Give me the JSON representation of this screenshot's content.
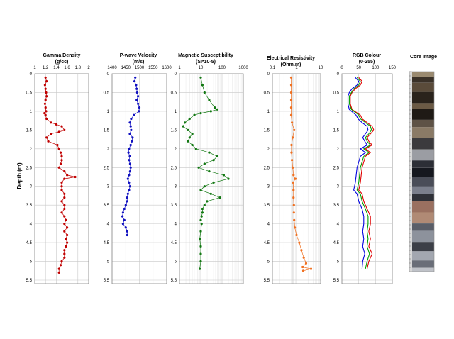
{
  "y_axis_label": "Depth (m)",
  "depth_ticks": [
    "0",
    "0.5",
    "1",
    "1.5",
    "2",
    "2.5",
    "3",
    "3.5",
    "4",
    "4.5",
    "5",
    "5.5"
  ],
  "core_title": "Core Image",
  "colors": {
    "gamma": "#c00000",
    "pwave": "#1010c0",
    "mag": "#117711",
    "res": "#f07020",
    "red": "#e00000",
    "green": "#00a000",
    "blue": "#0000e0",
    "grid": "#c8c8c8",
    "axis": "#888888"
  },
  "chart_data": [
    {
      "type": "line",
      "id": "gamma",
      "title": "Gamma Density",
      "subtitle": "(g/cc)",
      "xlim": [
        1,
        2
      ],
      "x_ticks": [
        "1",
        "1.2",
        "1.4",
        "1.6",
        "1.8",
        "2"
      ],
      "ylim": [
        0,
        6
      ],
      "series": [
        {
          "y": [
            0.1,
            0.2,
            0.3,
            0.4,
            0.5,
            0.6,
            0.7,
            0.8,
            0.9,
            1.0,
            1.05,
            1.1,
            1.2,
            1.3,
            1.35,
            1.4,
            1.5,
            1.55,
            1.6,
            1.7,
            1.8,
            1.9,
            2.0,
            2.1,
            2.2,
            2.3,
            2.4,
            2.5,
            2.6,
            2.7,
            2.75,
            2.8,
            2.9,
            3.0,
            3.1,
            3.2,
            3.3,
            3.4,
            3.5,
            3.6,
            3.7,
            3.8,
            3.9,
            4.0,
            4.1,
            4.2,
            4.3,
            4.4,
            4.5,
            4.6,
            4.7,
            4.8,
            4.9,
            5.0,
            5.1,
            5.2,
            5.3
          ],
          "x": [
            1.2,
            1.22,
            1.19,
            1.2,
            1.21,
            1.22,
            1.2,
            1.19,
            1.2,
            1.21,
            1.18,
            1.2,
            1.22,
            1.3,
            1.4,
            1.5,
            1.55,
            1.45,
            1.3,
            1.22,
            1.25,
            1.42,
            1.45,
            1.48,
            1.5,
            1.5,
            1.48,
            1.45,
            1.55,
            1.6,
            1.75,
            1.55,
            1.5,
            1.5,
            1.5,
            1.55,
            1.55,
            1.5,
            1.55,
            1.55,
            1.5,
            1.55,
            1.58,
            1.55,
            1.6,
            1.55,
            1.6,
            1.58,
            1.6,
            1.58,
            1.55,
            1.55,
            1.55,
            1.5,
            1.48,
            1.45,
            1.45
          ]
        }
      ]
    },
    {
      "type": "line",
      "id": "pwave",
      "title": "P-wave Velocity",
      "subtitle": "(m/s)",
      "xlim": [
        1400,
        1600
      ],
      "x_ticks": [
        "1400",
        "1450",
        "1500",
        "1550",
        "1600"
      ],
      "ylim": [
        0,
        6
      ],
      "series": [
        {
          "y": [
            0.1,
            0.2,
            0.3,
            0.4,
            0.5,
            0.6,
            0.7,
            0.8,
            0.9,
            1.0,
            1.1,
            1.2,
            1.3,
            1.4,
            1.5,
            1.6,
            1.7,
            1.8,
            1.9,
            2.0,
            2.1,
            2.2,
            2.3,
            2.4,
            2.5,
            2.6,
            2.7,
            2.8,
            2.9,
            3.0,
            3.1,
            3.2,
            3.3,
            3.4,
            3.5,
            3.6,
            3.7,
            3.8,
            3.9,
            4.0,
            4.1,
            4.2,
            4.3
          ],
          "x": [
            1485,
            1482,
            1488,
            1490,
            1492,
            1495,
            1490,
            1495,
            1500,
            1498,
            1480,
            1470,
            1465,
            1468,
            1470,
            1465,
            1475,
            1472,
            1468,
            1462,
            1460,
            1465,
            1462,
            1466,
            1468,
            1466,
            1462,
            1458,
            1462,
            1466,
            1462,
            1458,
            1455,
            1455,
            1450,
            1445,
            1440,
            1438,
            1445,
            1440,
            1450,
            1455,
            1455
          ]
        }
      ]
    },
    {
      "type": "line",
      "id": "mag",
      "title": "Magnetic Susceptibility",
      "subtitle": "(SI*10-5)",
      "log_x": true,
      "xlim": [
        1,
        1000
      ],
      "x_ticks": [
        "1",
        "10",
        "100",
        "1000"
      ],
      "ylim": [
        0,
        6
      ],
      "series": [
        {
          "y": [
            0.1,
            0.3,
            0.5,
            0.7,
            0.9,
            0.95,
            1.0,
            1.05,
            1.1,
            1.2,
            1.3,
            1.4,
            1.5,
            1.6,
            1.7,
            1.8,
            1.9,
            2.0,
            2.1,
            2.2,
            2.3,
            2.4,
            2.5,
            2.6,
            2.7,
            2.8,
            2.9,
            3.0,
            3.1,
            3.2,
            3.3,
            3.4,
            3.5,
            3.6,
            3.7,
            3.8,
            3.9,
            4.0,
            4.2,
            4.4,
            4.6,
            4.8,
            5.0,
            5.2
          ],
          "x": [
            10,
            12,
            15,
            25,
            45,
            60,
            30,
            10,
            5,
            3,
            1.8,
            1.5,
            2.5,
            4,
            3,
            2.5,
            4,
            6,
            25,
            60,
            40,
            15,
            8,
            25,
            120,
            200,
            40,
            15,
            10,
            30,
            80,
            20,
            15,
            12,
            12,
            11,
            10,
            11,
            10,
            9,
            10,
            10,
            10,
            9
          ]
        }
      ]
    },
    {
      "type": "line",
      "id": "res",
      "title": "Electrical Resistivity",
      "subtitle": "(Ohm.m)",
      "log_x": true,
      "xlim": [
        0.1,
        10
      ],
      "x_ticks": [
        "0.1",
        "1",
        "10"
      ],
      "ylim": [
        0,
        6
      ],
      "series": [
        {
          "y": [
            0.1,
            0.3,
            0.5,
            0.7,
            0.9,
            1.1,
            1.3,
            1.5,
            1.7,
            1.9,
            2.1,
            2.3,
            2.5,
            2.7,
            2.8,
            2.9,
            3.1,
            3.3,
            3.5,
            3.7,
            3.9,
            4.1,
            4.3,
            4.5,
            4.7,
            4.9,
            5.05,
            5.15,
            5.2,
            5.25
          ],
          "x": [
            0.6,
            0.6,
            0.6,
            0.6,
            0.6,
            0.6,
            0.65,
            0.8,
            0.7,
            0.62,
            0.62,
            0.65,
            0.7,
            0.75,
            0.9,
            0.72,
            0.75,
            0.75,
            0.78,
            0.78,
            0.8,
            0.85,
            1.0,
            1.3,
            1.6,
            2.0,
            2.5,
            1.8,
            4.0,
            1.9
          ]
        }
      ]
    },
    {
      "type": "line",
      "id": "rgb",
      "title": "RGB Colour",
      "subtitle": "(0-255)",
      "xlim": [
        0,
        150
      ],
      "x_ticks": [
        "0",
        "50",
        "100",
        "150"
      ],
      "ylim": [
        0,
        6
      ],
      "series": [
        {
          "name": "red",
          "y": [
            0.1,
            0.2,
            0.3,
            0.4,
            0.5,
            0.6,
            0.8,
            0.95,
            1.1,
            1.2,
            1.3,
            1.4,
            1.5,
            1.6,
            1.7,
            1.8,
            1.9,
            2.0,
            2.1,
            2.2,
            2.5,
            2.9,
            3.1,
            3.2,
            3.4,
            3.6,
            3.8,
            4.0,
            4.2,
            4.4,
            4.6,
            4.8,
            5.0,
            5.2
          ],
          "x": [
            50,
            60,
            55,
            40,
            30,
            25,
            25,
            30,
            55,
            60,
            75,
            90,
            95,
            85,
            75,
            80,
            90,
            70,
            85,
            70,
            60,
            55,
            50,
            60,
            65,
            75,
            85,
            85,
            80,
            85,
            80,
            90,
            80,
            75
          ]
        },
        {
          "name": "green",
          "y": [
            0.1,
            0.2,
            0.3,
            0.4,
            0.5,
            0.6,
            0.8,
            0.95,
            1.1,
            1.2,
            1.3,
            1.4,
            1.5,
            1.6,
            1.7,
            1.8,
            1.9,
            2.0,
            2.1,
            2.2,
            2.5,
            2.9,
            3.1,
            3.2,
            3.4,
            3.6,
            3.8,
            4.0,
            4.2,
            4.4,
            4.6,
            4.8,
            5.0,
            5.2
          ],
          "x": [
            45,
            55,
            50,
            35,
            28,
            22,
            22,
            28,
            50,
            55,
            70,
            85,
            88,
            80,
            70,
            75,
            85,
            65,
            80,
            65,
            55,
            50,
            45,
            55,
            60,
            70,
            78,
            78,
            75,
            78,
            75,
            82,
            75,
            70
          ]
        },
        {
          "name": "blue",
          "y": [
            0.1,
            0.2,
            0.3,
            0.4,
            0.5,
            0.6,
            0.8,
            0.95,
            1.1,
            1.2,
            1.3,
            1.4,
            1.5,
            1.6,
            1.7,
            1.8,
            1.9,
            2.0,
            2.1,
            2.2,
            2.5,
            2.9,
            3.1,
            3.2,
            3.4,
            3.6,
            3.8,
            4.0,
            4.2,
            4.4,
            4.6,
            4.8,
            5.0,
            5.2
          ],
          "x": [
            40,
            50,
            45,
            30,
            22,
            18,
            18,
            22,
            42,
            48,
            60,
            75,
            78,
            70,
            62,
            68,
            75,
            55,
            70,
            55,
            45,
            40,
            35,
            45,
            50,
            60,
            65,
            65,
            62,
            65,
            62,
            68,
            62,
            60
          ]
        }
      ]
    }
  ]
}
